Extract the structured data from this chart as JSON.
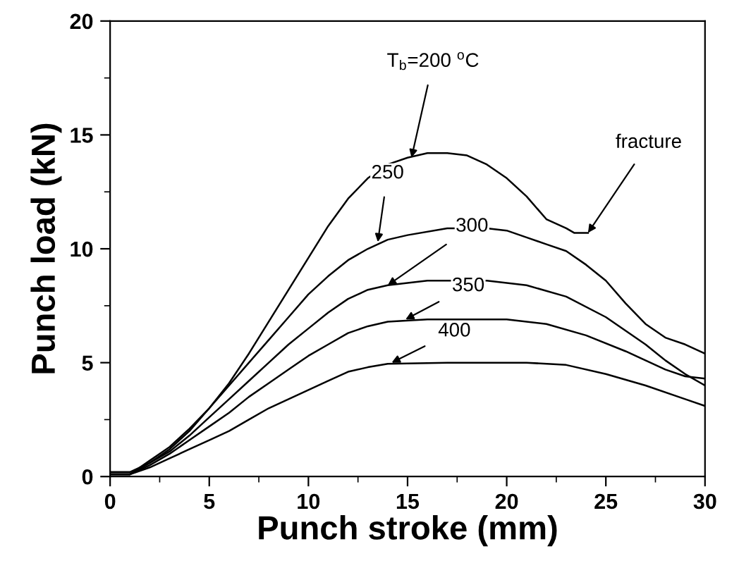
{
  "chart_data": {
    "type": "line",
    "xlabel": "Punch stroke (mm)",
    "ylabel": "Punch load (kN)",
    "xlim": [
      0,
      30
    ],
    "ylim": [
      0,
      20
    ],
    "xticks": [
      0,
      {
        "value": 2.5,
        "label": null
      },
      5,
      {
        "value": 7.5,
        "label": null
      },
      10,
      {
        "value": 12.5,
        "label": null
      },
      15,
      {
        "value": 17.5,
        "label": null
      },
      20,
      {
        "value": 22.5,
        "label": null
      },
      25,
      {
        "value": 27.5,
        "label": null
      },
      30
    ],
    "yticks": [
      0,
      {
        "value": 2.5,
        "label": null
      },
      5,
      {
        "value": 7.5,
        "label": null
      },
      10,
      {
        "value": 12.5,
        "label": null
      },
      15,
      {
        "value": 17.5,
        "label": null
      },
      20
    ],
    "grid": false,
    "legend": false,
    "marker": "none",
    "line_style": "solid",
    "series": [
      {
        "color": "#000000",
        "x": [
          0,
          1,
          2,
          3,
          4,
          5,
          6,
          7,
          8,
          9,
          10,
          11,
          12,
          13,
          14,
          15,
          16,
          17,
          18,
          19,
          20,
          21,
          22,
          23,
          23.4,
          24.1
        ],
        "values": [
          0.2,
          0.2,
          0.6,
          1.2,
          2.0,
          3.0,
          4.1,
          5.4,
          6.8,
          8.2,
          9.6,
          11.0,
          12.2,
          13.1,
          13.7,
          14.0,
          14.2,
          14.2,
          14.1,
          13.7,
          13.1,
          12.3,
          11.3,
          10.9,
          10.7,
          10.7
        ]
      },
      {
        "color": "#000000",
        "x": [
          0,
          1,
          2,
          3,
          4,
          5,
          6,
          7,
          8,
          9,
          10,
          11,
          12,
          13,
          14,
          15,
          17,
          19,
          20,
          21,
          22,
          23,
          24,
          25,
          26,
          27,
          28,
          29,
          30
        ],
        "values": [
          0.1,
          0.1,
          0.7,
          1.3,
          2.1,
          3.0,
          4.0,
          5.0,
          6.0,
          7.0,
          8.0,
          8.8,
          9.5,
          10.0,
          10.4,
          10.6,
          10.9,
          10.9,
          10.8,
          10.5,
          10.2,
          9.9,
          9.3,
          8.6,
          7.6,
          6.7,
          6.1,
          5.8,
          5.4
        ]
      },
      {
        "color": "#000000",
        "x": [
          0,
          1,
          2,
          3,
          4,
          5,
          6,
          7,
          8,
          9,
          10,
          11,
          12,
          13,
          14,
          16,
          19,
          21,
          23,
          25,
          27,
          28,
          29,
          30
        ],
        "values": [
          0.1,
          0.1,
          0.6,
          1.1,
          1.8,
          2.6,
          3.4,
          4.2,
          5.0,
          5.8,
          6.5,
          7.2,
          7.8,
          8.2,
          8.4,
          8.6,
          8.6,
          8.4,
          7.9,
          7.0,
          5.8,
          5.1,
          4.5,
          4.0
        ]
      },
      {
        "color": "#000000",
        "x": [
          0,
          1,
          2,
          3,
          4,
          5,
          6,
          7,
          8,
          9,
          10,
          11,
          12,
          13,
          14,
          16,
          20,
          22,
          24,
          26,
          27,
          28,
          29,
          30
        ],
        "values": [
          0.1,
          0.1,
          0.5,
          1.0,
          1.6,
          2.2,
          2.8,
          3.5,
          4.1,
          4.7,
          5.3,
          5.8,
          6.3,
          6.6,
          6.8,
          6.9,
          6.9,
          6.7,
          6.2,
          5.5,
          5.1,
          4.7,
          4.4,
          4.3
        ]
      },
      {
        "color": "#000000",
        "x": [
          0,
          1,
          2,
          3,
          4,
          5,
          6,
          7,
          8,
          9,
          10,
          11,
          12,
          13,
          14,
          17,
          21,
          23,
          25,
          27,
          29,
          30
        ],
        "values": [
          0.1,
          0.1,
          0.4,
          0.8,
          1.2,
          1.6,
          2.0,
          2.5,
          3.0,
          3.4,
          3.8,
          4.2,
          4.6,
          4.8,
          4.95,
          5.0,
          5.0,
          4.9,
          4.5,
          4.0,
          3.4,
          3.1
        ]
      }
    ],
    "annotations": [
      {
        "text": "T$_{b}$=200 $^{o}$C",
        "x": 15.2,
        "y": 14.0
      },
      {
        "text": "fracture",
        "x": 24.1,
        "y": 10.7
      },
      {
        "text": "250",
        "x": 13.5,
        "y": 10.3
      },
      {
        "text": "300",
        "x": 14.0,
        "y": 8.4
      },
      {
        "text": "350",
        "x": 14.9,
        "y": 6.9
      },
      {
        "text": "400",
        "x": 14.2,
        "y": 5.0
      }
    ]
  }
}
